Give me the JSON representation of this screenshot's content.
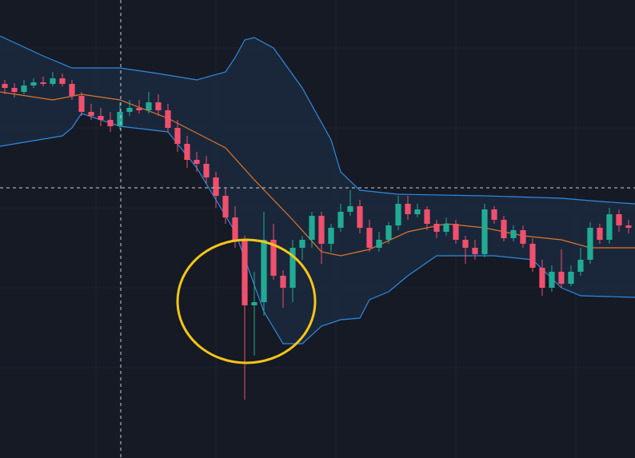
{
  "chart_data": {
    "type": "candlestick",
    "xlim": [
      -0.5,
      65.67
    ],
    "ylim": [
      0,
      573
    ],
    "up_color": "#22ab94",
    "down_color": "#f0506e",
    "band_fill": "#1b2a3e",
    "candles": {
      "x": [
        0,
        1,
        2,
        3,
        4,
        5,
        6,
        7,
        8,
        9,
        10,
        11,
        12,
        13,
        14,
        15,
        16,
        17,
        18,
        19,
        20,
        21,
        22,
        23,
        24,
        25,
        26,
        27,
        28,
        29,
        30,
        31,
        32,
        33,
        34,
        35,
        36,
        37,
        38,
        39,
        40,
        41,
        42,
        43,
        44,
        45,
        46,
        47,
        48,
        49,
        50,
        51,
        52,
        53,
        54,
        55,
        56,
        57,
        58,
        59,
        60,
        61,
        62,
        63,
        64,
        65
      ],
      "open": [
        468,
        463,
        458,
        466,
        470,
        468,
        475,
        468,
        453,
        433,
        428,
        423,
        415,
        433,
        438,
        435,
        445,
        435,
        413,
        393,
        373,
        368,
        351,
        328,
        301,
        273,
        191,
        195,
        273,
        228,
        213,
        263,
        273,
        303,
        268,
        288,
        308,
        315,
        288,
        263,
        273,
        291,
        318,
        305,
        311,
        293,
        283,
        293,
        273,
        263,
        255,
        311,
        298,
        275,
        285,
        268,
        238,
        213,
        233,
        218,
        233,
        248,
        288,
        273,
        305,
        291
      ],
      "high": [
        473,
        469,
        473,
        475,
        477,
        483,
        481,
        473,
        458,
        443,
        438,
        433,
        445,
        448,
        448,
        458,
        455,
        443,
        423,
        403,
        383,
        378,
        358,
        338,
        315,
        278,
        233,
        308,
        293,
        235,
        273,
        278,
        308,
        308,
        293,
        318,
        335,
        323,
        298,
        283,
        295,
        328,
        328,
        318,
        315,
        298,
        301,
        298,
        278,
        273,
        318,
        315,
        303,
        291,
        291,
        275,
        248,
        241,
        261,
        241,
        263,
        295,
        293,
        313,
        311,
        298
      ],
      "low": [
        455,
        451,
        455,
        463,
        465,
        465,
        465,
        448,
        428,
        423,
        415,
        408,
        411,
        428,
        431,
        431,
        428,
        408,
        383,
        363,
        358,
        343,
        313,
        293,
        263,
        73,
        128,
        178,
        223,
        188,
        195,
        248,
        263,
        243,
        258,
        283,
        303,
        281,
        258,
        258,
        268,
        285,
        298,
        301,
        285,
        275,
        278,
        268,
        243,
        248,
        251,
        293,
        271,
        271,
        263,
        233,
        203,
        208,
        213,
        215,
        228,
        243,
        268,
        268,
        283,
        281
      ],
      "close": [
        463,
        458,
        466,
        470,
        468,
        475,
        468,
        453,
        433,
        428,
        423,
        415,
        433,
        438,
        435,
        445,
        435,
        413,
        393,
        373,
        368,
        351,
        328,
        301,
        273,
        191,
        195,
        273,
        228,
        213,
        263,
        273,
        303,
        268,
        288,
        308,
        315,
        288,
        263,
        273,
        291,
        318,
        305,
        311,
        293,
        283,
        293,
        273,
        263,
        255,
        311,
        298,
        275,
        285,
        268,
        238,
        213,
        233,
        218,
        233,
        248,
        288,
        273,
        305,
        291,
        288
      ]
    },
    "bands": {
      "upper": {
        "color": "#2f8ae0",
        "x": [
          -0.5,
          4,
          7,
          12,
          16,
          20,
          23,
          24,
          25,
          26,
          28,
          31,
          34,
          35,
          37,
          41,
          50,
          58,
          62,
          65.67
        ],
        "values": [
          528,
          503,
          488,
          488,
          481,
          473,
          483,
          501,
          523,
          526,
          513,
          463,
          398,
          358,
          335,
          330,
          328,
          325,
          321,
          318
        ]
      },
      "lower": {
        "color": "#2f8ae0",
        "x": [
          -0.5,
          6,
          7,
          8,
          12,
          17,
          20,
          24,
          27,
          29,
          31,
          33,
          35,
          37,
          38,
          40,
          42,
          45,
          51,
          55,
          58,
          60,
          65.67
        ],
        "values": [
          390,
          403,
          413,
          431,
          415,
          408,
          363,
          283,
          183,
          143,
          143,
          165,
          173,
          175,
          198,
          208,
          228,
          253,
          253,
          248,
          213,
          203,
          201
        ]
      },
      "middle": {
        "color": "#e0762a",
        "x": [
          -0.5,
          5,
          8,
          12,
          17,
          23,
          26,
          30,
          33,
          35,
          38,
          42,
          46,
          50,
          54,
          58,
          61,
          65.67
        ],
        "values": [
          458,
          448,
          455,
          448,
          425,
          388,
          348,
          298,
          258,
          253,
          261,
          283,
          293,
          288,
          278,
          273,
          263,
          263
        ]
      }
    }
  }
}
